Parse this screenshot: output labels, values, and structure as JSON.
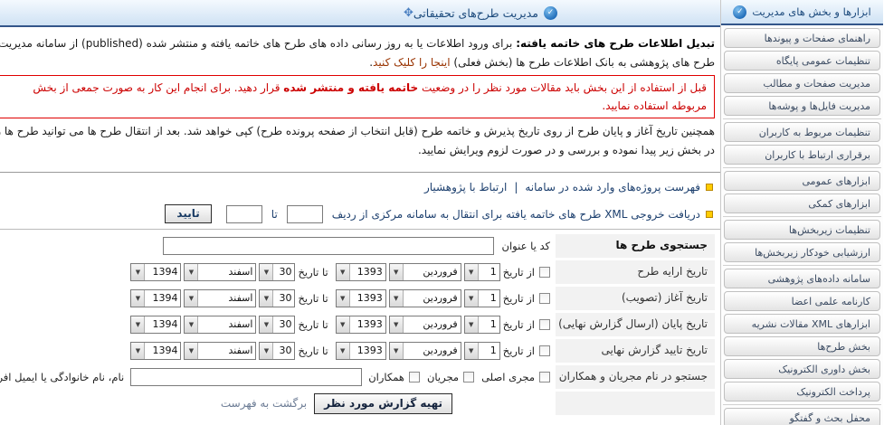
{
  "icons": {
    "check": "✓",
    "move": "✥",
    "dropdown": "▼",
    "bullet": "square-yellow"
  },
  "colors": {
    "accent_navy": "#1c4a7c",
    "header_border": "#33568a",
    "warning_red": "#cc0000",
    "bullet_yellow": "#ffcc00",
    "link_maroon": "#993300",
    "label_cell_bg": "#f2f2f2"
  },
  "header": {
    "title": "مدیریت طرح‌های تحقیقاتی"
  },
  "sidebar": {
    "header": "ابزارها و بخش های مدیریت",
    "groups": [
      {
        "items": [
          "راهنمای صفحات و پیوندها",
          "تنظیمات عمومی پایگاه",
          "مدیریت صفحات و مطالب",
          "مدیریت فایل‌ها و پوشه‌ها"
        ]
      },
      {
        "items": [
          "تنظیمات مربوط به کاربران",
          "برقراری ارتباط با کاربران"
        ]
      },
      {
        "items": [
          "ابزارهای عمومی",
          "ابزارهای کمکی"
        ]
      },
      {
        "items": [
          "تنظیمات زیربخش‌ها",
          "ارزشیابی خودکار زیربخش‌ها"
        ]
      },
      {
        "items": [
          "سامانه داده‌های پژوهشی",
          "کارنامه علمی اعضا",
          "ابزارهای XML مقالات نشریه",
          "بخش طرح‌ها",
          "بخش داوری الکترونیک",
          "پرداخت الکترونیک"
        ]
      },
      {
        "items": [
          "محفل بحث و گفتگو"
        ]
      }
    ]
  },
  "intro": {
    "lead": "تبدیل اطلاعات طرح های خاتمه یافته:",
    "body": " برای ورود اطلاعات یا به روز رسانی داده های طرح های خاتمه یافته و منتشر شده (published) از سامانه مدیریت طرح های پژوهشی به بانک اطلاعات طرح ها (بخش فعلی) ",
    "link": "اینجا را کلیک کنید",
    "end": "."
  },
  "warning": {
    "before": "قبل از استفاده از این بخش باید مقالات مورد نظر را در وضعیت ",
    "bold": "خاتمه یافته و منتشر شده",
    "after": " قرار دهید. برای انجام این کار به صورت جمعی از بخش مربوطه استفاده نمایید."
  },
  "note": "همچنین تاریخ آغاز و پایان طرح از روی تاریخ پذیرش و خاتمه طرح (قابل انتخاب از صفحه پرونده طرح) کپی خواهد شد. بعد از انتقال طرح ها می توانید طرح ها را در بخش زیر پیدا نموده و بررسی و در صورت لزوم ویرایش نمایید.",
  "links_row": {
    "list_link": "فهرست پروژه‌های وارد شده در سامانه",
    "separator": "|",
    "contact_link": "ارتباط با پژوهشیار"
  },
  "xml_row": {
    "text": "دریافت خروجی XML طرح های خاتمه یافته برای انتقال به سامانه مرکزی از ردیف",
    "from_value": "",
    "to_label": "تا",
    "to_value": "",
    "confirm_label": "تایید"
  },
  "search_form": {
    "title": "جستجوی طرح ها",
    "code_label": "کد یا عنوان",
    "code_value": "",
    "date_rows": [
      {
        "label": "تاریخ ارایه طرح"
      },
      {
        "label": "تاریخ آغاز (تصویب)"
      },
      {
        "label": "تاریخ پایان (ارسال گزارش نهایی)"
      },
      {
        "label": "تاریخ تایید گزارش نهایی"
      }
    ],
    "date_defaults": {
      "from_label": "از تاریخ",
      "to_label": "تا تاریخ",
      "from_day": "1",
      "from_month": "فروردین",
      "from_year": "1393",
      "to_day": "30",
      "to_month": "اسفند",
      "to_year": "1394"
    },
    "people_row": {
      "label": "جستجو در نام مجریان و همکاران",
      "checkbox_principal": "مجری اصلی",
      "checkbox_managers": "مجریان",
      "checkbox_collaborators": "همکاران",
      "value": "",
      "hint": "نام، نام خانوادگی یا ایمیل افراد"
    },
    "actions": {
      "submit": "تهیه گزارش مورد نظر",
      "back": "برگشت به فهرست"
    }
  }
}
